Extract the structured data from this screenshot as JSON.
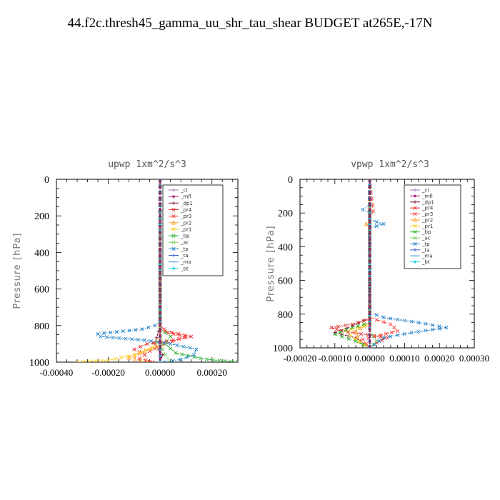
{
  "title": "44.f2c.thresh45_gamma_uu_shr_tau_shear  BUDGET at265E,-17N",
  "chart_data": [
    {
      "type": "line",
      "title": "upwp   1xm^2/s^3",
      "ylabel": "Pressure  [hPa]",
      "xlim": [
        -0.0004,
        0.0003
      ],
      "ylim": [
        1000,
        0
      ],
      "xticks": [
        -0.0004,
        -0.0002,
        0.0,
        0.0002
      ],
      "xtick_labels": [
        "-0.00040",
        "-0.00020",
        "0.00000",
        "0.00020"
      ],
      "yticks": [
        0,
        200,
        400,
        600,
        800,
        1000
      ],
      "ytick_labels": [
        "0",
        "200",
        "400",
        "600",
        "800",
        "1000"
      ],
      "legend_position": "upper-right",
      "series": [
        {
          "name": "_cl",
          "color": "#a070b8",
          "marker": "+",
          "points": [
            [
              0,
              0
            ],
            [
              0,
              400
            ],
            [
              0,
              800
            ],
            [
              0,
              1000
            ]
          ]
        },
        {
          "name": "_mfl",
          "color": "#b0207a",
          "marker": "dot",
          "points": [
            [
              0,
              0
            ],
            [
              0,
              400
            ],
            [
              0,
              800
            ],
            [
              0,
              1000
            ]
          ]
        },
        {
          "name": "_dp1",
          "color": "#7a1030",
          "marker": "+",
          "points": [
            [
              0,
              0
            ],
            [
              0,
              800
            ],
            [
              -2e-05,
              900
            ],
            [
              1e-05,
              960
            ],
            [
              0,
              1000
            ]
          ]
        },
        {
          "name": "_pr4",
          "color": "#e03030",
          "marker": "x",
          "points": [
            [
              0,
              0
            ],
            [
              0,
              800
            ],
            [
              2e-05,
              830
            ],
            [
              0.00012,
              860
            ],
            [
              5e-05,
              880
            ],
            [
              -5e-05,
              900
            ],
            [
              -0.0001,
              930
            ],
            [
              -6e-05,
              960
            ],
            [
              -4e-05,
              1000
            ]
          ]
        },
        {
          "name": "_pr3",
          "color": "#ff4040",
          "marker": "x",
          "points": [
            [
              0,
              0
            ],
            [
              0,
              800
            ],
            [
              3e-05,
              840
            ],
            [
              0.0001,
              860
            ],
            [
              2e-05,
              900
            ],
            [
              -4e-05,
              940
            ],
            [
              -8e-05,
              980
            ],
            [
              -3e-05,
              1000
            ]
          ]
        },
        {
          "name": "_pr2",
          "color": "#ffa030",
          "marker": "triangle",
          "points": [
            [
              0,
              0
            ],
            [
              0,
              850
            ],
            [
              1e-05,
              900
            ],
            [
              -6e-05,
              940
            ],
            [
              -0.00012,
              975
            ],
            [
              -5e-05,
              1000
            ]
          ]
        },
        {
          "name": "_pr1",
          "color": "#ffd020",
          "marker": "x",
          "points": [
            [
              0,
              0
            ],
            [
              0,
              860
            ],
            [
              -3e-05,
              920
            ],
            [
              -0.0001,
              960
            ],
            [
              -0.0002,
              990
            ],
            [
              -0.00032,
              1000
            ]
          ]
        },
        {
          "name": "_bp",
          "color": "#30b030",
          "marker": "x",
          "points": [
            [
              0,
              0
            ],
            [
              0,
              820
            ],
            [
              4e-05,
              860
            ],
            [
              2e-05,
              900
            ],
            [
              6e-05,
              950
            ],
            [
              0.00018,
              985
            ],
            [
              0.0003,
              1000
            ]
          ]
        },
        {
          "name": "_ac",
          "color": "#80d060",
          "marker": "x",
          "points": [
            [
              0,
              0
            ],
            [
              0,
              900
            ],
            [
              2e-05,
              960
            ],
            [
              4e-05,
              1000
            ]
          ]
        },
        {
          "name": "_tp",
          "color": "#2080c8",
          "marker": "x",
          "points": [
            [
              0,
              0
            ],
            [
              0,
              780
            ],
            [
              -2e-05,
              800
            ],
            [
              -7e-05,
              820
            ],
            [
              -0.00024,
              845
            ],
            [
              -0.00023,
              860
            ],
            [
              -6e-05,
              880
            ],
            [
              4e-05,
              900
            ],
            [
              0.00014,
              930
            ],
            [
              0.00013,
              960
            ],
            [
              8e-05,
              985
            ],
            [
              2e-05,
              1000
            ]
          ]
        },
        {
          "name": "_ta",
          "color": "#4060d0",
          "marker": "+",
          "points": [
            [
              0,
              0
            ],
            [
              0,
              1000
            ]
          ]
        },
        {
          "name": "_ma",
          "color": "#4090e0",
          "marker": "dash",
          "points": [
            [
              0,
              0
            ],
            [
              0,
              1000
            ]
          ]
        },
        {
          "name": "_bt",
          "color": "#20d0e0",
          "marker": "diamond",
          "points": [
            [
              0,
              0
            ],
            [
              0,
              1000
            ]
          ]
        }
      ]
    },
    {
      "type": "line",
      "title": "vpwp   1xm^2/s^3",
      "ylabel": "Pressure  [hPa]",
      "xlim": [
        -0.0002,
        0.0003
      ],
      "ylim": [
        1000,
        0
      ],
      "xticks": [
        -0.0002,
        -0.0001,
        0.0,
        0.0001,
        0.0002,
        0.0003
      ],
      "xtick_labels": [
        "-0.00020",
        "-0.00010",
        "0.00000",
        "0.00010",
        "0.00020",
        "0.00030"
      ],
      "yticks": [
        0,
        200,
        400,
        600,
        800,
        1000
      ],
      "ytick_labels": [
        "0",
        "200",
        "400",
        "600",
        "800",
        "1000"
      ],
      "legend_position": "upper-right",
      "series": [
        {
          "name": "_cl",
          "color": "#a070b8",
          "marker": "+",
          "points": [
            [
              0,
              0
            ],
            [
              0,
              400
            ],
            [
              0,
              800
            ],
            [
              0,
              1000
            ]
          ]
        },
        {
          "name": "_mfl",
          "color": "#b0207a",
          "marker": "dot",
          "points": [
            [
              0,
              0
            ],
            [
              0,
              400
            ],
            [
              0,
              800
            ],
            [
              0,
              1000
            ]
          ]
        },
        {
          "name": "_dp1",
          "color": "#7a1030",
          "marker": "+",
          "points": [
            [
              0,
              0
            ],
            [
              0,
              820
            ],
            [
              -5e-05,
              870
            ],
            [
              -0.0001,
              910
            ],
            [
              -4e-05,
              940
            ],
            [
              0,
              1000
            ]
          ]
        },
        {
          "name": "_pr4",
          "color": "#e03030",
          "marker": "x",
          "points": [
            [
              0,
              0
            ],
            [
              0,
              830
            ],
            [
              -5e-05,
              860
            ],
            [
              -0.00011,
              880
            ],
            [
              -8e-05,
              900
            ],
            [
              5e-05,
              940
            ],
            [
              2e-05,
              970
            ],
            [
              0,
              1000
            ]
          ]
        },
        {
          "name": "_pr3",
          "color": "#ff4040",
          "marker": "x",
          "points": [
            [
              0,
              0
            ],
            [
              1e-05,
              190
            ],
            [
              0,
              220
            ],
            [
              0,
              820
            ],
            [
              6e-05,
              860
            ],
            [
              8e-05,
              900
            ],
            [
              -2e-05,
              950
            ],
            [
              0,
              1000
            ]
          ]
        },
        {
          "name": "_pr2",
          "color": "#ffa030",
          "marker": "triangle",
          "points": [
            [
              0,
              0
            ],
            [
              0,
              240
            ],
            [
              -1e-05,
              265
            ],
            [
              0,
              290
            ],
            [
              0,
              850
            ],
            [
              -4e-05,
              900
            ],
            [
              -3e-05,
              960
            ],
            [
              0,
              1000
            ]
          ]
        },
        {
          "name": "_pr1",
          "color": "#ffd020",
          "marker": "x",
          "points": [
            [
              0,
              0
            ],
            [
              0,
              860
            ],
            [
              -7e-05,
              900
            ],
            [
              -4e-05,
              950
            ],
            [
              0,
              1000
            ]
          ]
        },
        {
          "name": "_bp",
          "color": "#30b030",
          "marker": "x",
          "points": [
            [
              0,
              0
            ],
            [
              0,
              850
            ],
            [
              -5e-05,
              880
            ],
            [
              -0.0001,
              920
            ],
            [
              -4e-05,
              960
            ],
            [
              0,
              1000
            ]
          ]
        },
        {
          "name": "_ac",
          "color": "#80d060",
          "marker": "x",
          "points": [
            [
              0,
              0
            ],
            [
              0,
              900
            ],
            [
              2e-05,
              960
            ],
            [
              0,
              1000
            ]
          ]
        },
        {
          "name": "_tp",
          "color": "#2080c8",
          "marker": "x",
          "points": [
            [
              0,
              0
            ],
            [
              0,
              150
            ],
            [
              -2e-05,
              180
            ],
            [
              0,
              200
            ],
            [
              0,
              240
            ],
            [
              4e-05,
              265
            ],
            [
              0,
              290
            ],
            [
              0,
              790
            ],
            [
              4e-05,
              820
            ],
            [
              0.00014,
              850
            ],
            [
              0.00022,
              880
            ],
            [
              0.00012,
              910
            ],
            [
              4e-05,
              940
            ],
            [
              0,
              1000
            ]
          ]
        },
        {
          "name": "_ta",
          "color": "#4060d0",
          "marker": "+",
          "points": [
            [
              0,
              0
            ],
            [
              0,
              1000
            ]
          ]
        },
        {
          "name": "_ma",
          "color": "#4090e0",
          "marker": "dash",
          "points": [
            [
              0,
              0
            ],
            [
              0,
              1000
            ]
          ]
        },
        {
          "name": "_bt",
          "color": "#20d0e0",
          "marker": "diamond",
          "points": [
            [
              0,
              0
            ],
            [
              0,
              1000
            ]
          ]
        }
      ]
    }
  ]
}
